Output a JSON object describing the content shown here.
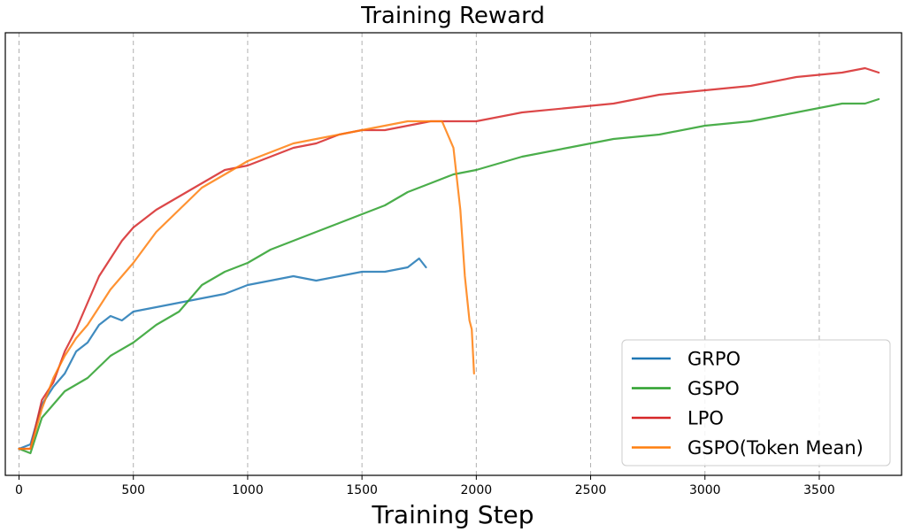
{
  "chart_data": {
    "type": "line",
    "title": "Training Reward",
    "xlabel": "Training Step",
    "ylabel": "",
    "xlim": [
      -60,
      3860
    ],
    "ylim": [
      0.0,
      1.0
    ],
    "xticks": [
      0,
      500,
      1000,
      1500,
      2000,
      2500,
      3000,
      3500
    ],
    "yticks_shown": false,
    "grid": "vertical-dashed",
    "legend_position": "bottom-right",
    "series": [
      {
        "name": "GRPO",
        "color": "#1f77b4",
        "x": [
          0,
          50,
          100,
          150,
          200,
          250,
          300,
          350,
          400,
          450,
          500,
          600,
          700,
          800,
          900,
          1000,
          1100,
          1200,
          1300,
          1400,
          1500,
          1600,
          1700,
          1750,
          1780
        ],
        "y": [
          0.06,
          0.07,
          0.16,
          0.2,
          0.23,
          0.28,
          0.3,
          0.34,
          0.36,
          0.35,
          0.37,
          0.38,
          0.39,
          0.4,
          0.41,
          0.43,
          0.44,
          0.45,
          0.44,
          0.45,
          0.46,
          0.46,
          0.47,
          0.49,
          0.47
        ]
      },
      {
        "name": "GSPO",
        "color": "#2ca02c",
        "x": [
          0,
          50,
          100,
          200,
          300,
          400,
          500,
          600,
          700,
          800,
          900,
          1000,
          1100,
          1200,
          1300,
          1400,
          1500,
          1600,
          1700,
          1800,
          1900,
          2000,
          2200,
          2400,
          2600,
          2800,
          3000,
          3200,
          3400,
          3600,
          3700,
          3760
        ],
        "y": [
          0.06,
          0.05,
          0.13,
          0.19,
          0.22,
          0.27,
          0.3,
          0.34,
          0.37,
          0.43,
          0.46,
          0.48,
          0.51,
          0.53,
          0.55,
          0.57,
          0.59,
          0.61,
          0.64,
          0.66,
          0.68,
          0.69,
          0.72,
          0.74,
          0.76,
          0.77,
          0.79,
          0.8,
          0.82,
          0.84,
          0.84,
          0.85
        ]
      },
      {
        "name": "LPO",
        "color": "#d62728",
        "x": [
          0,
          50,
          100,
          150,
          200,
          250,
          300,
          350,
          400,
          450,
          500,
          600,
          700,
          800,
          900,
          1000,
          1100,
          1200,
          1300,
          1400,
          1500,
          1600,
          1700,
          1800,
          1900,
          2000,
          2200,
          2400,
          2600,
          2800,
          3000,
          3200,
          3400,
          3600,
          3700,
          3760
        ],
        "y": [
          0.06,
          0.06,
          0.17,
          0.21,
          0.28,
          0.33,
          0.39,
          0.45,
          0.49,
          0.53,
          0.56,
          0.6,
          0.63,
          0.66,
          0.69,
          0.7,
          0.72,
          0.74,
          0.75,
          0.77,
          0.78,
          0.78,
          0.79,
          0.8,
          0.8,
          0.8,
          0.82,
          0.83,
          0.84,
          0.86,
          0.87,
          0.88,
          0.9,
          0.91,
          0.92,
          0.91
        ]
      },
      {
        "name": "GSPO(Token Mean)",
        "color": "#ff7f0e",
        "x": [
          0,
          50,
          100,
          150,
          200,
          250,
          300,
          350,
          400,
          450,
          500,
          600,
          700,
          800,
          900,
          1000,
          1100,
          1200,
          1300,
          1400,
          1500,
          1600,
          1700,
          1800,
          1850,
          1900,
          1930,
          1950,
          1970,
          1980,
          1990
        ],
        "y": [
          0.06,
          0.06,
          0.15,
          0.22,
          0.27,
          0.31,
          0.34,
          0.38,
          0.42,
          0.45,
          0.48,
          0.55,
          0.6,
          0.65,
          0.68,
          0.71,
          0.73,
          0.75,
          0.76,
          0.77,
          0.78,
          0.79,
          0.8,
          0.8,
          0.8,
          0.74,
          0.6,
          0.45,
          0.35,
          0.33,
          0.23
        ]
      }
    ]
  }
}
